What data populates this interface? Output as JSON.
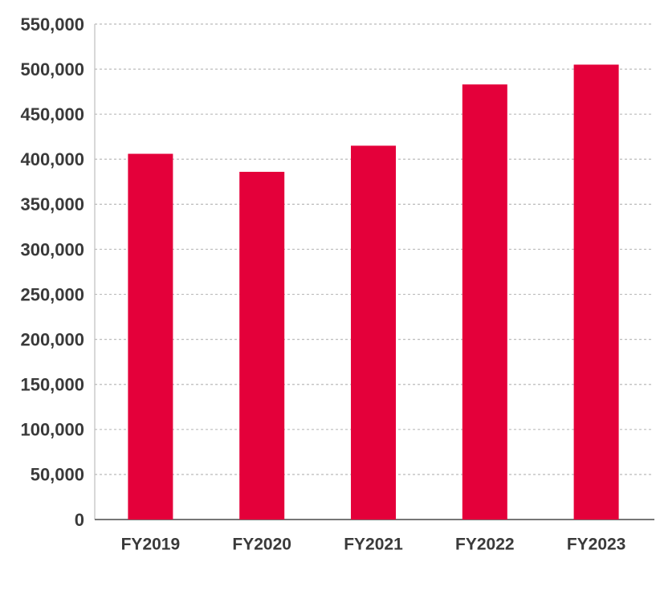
{
  "chart_data": {
    "type": "bar",
    "categories": [
      "FY2019",
      "FY2020",
      "FY2021",
      "FY2022",
      "FY2023"
    ],
    "values": [
      406000,
      386000,
      415000,
      483000,
      505000
    ],
    "color": "#e4003a",
    "ylim": [
      0,
      550000
    ],
    "yticks": [
      0,
      {
        "value": 50000,
        "label": "50,000"
      },
      {
        "value": 100000,
        "label": "100,000"
      },
      {
        "value": 150000,
        "label": "150,000"
      },
      {
        "value": 200000,
        "label": "200,000"
      },
      {
        "value": 250000,
        "label": "250,000"
      },
      {
        "value": 300000,
        "label": "300,000"
      },
      {
        "value": 350000,
        "label": "350,000"
      },
      {
        "value": 400000,
        "label": "400,000"
      },
      {
        "value": 450000,
        "label": "450,000"
      },
      {
        "value": 500000,
        "label": "500,000"
      },
      {
        "value": 550000,
        "label": "550,000"
      }
    ],
    "grid": true
  }
}
